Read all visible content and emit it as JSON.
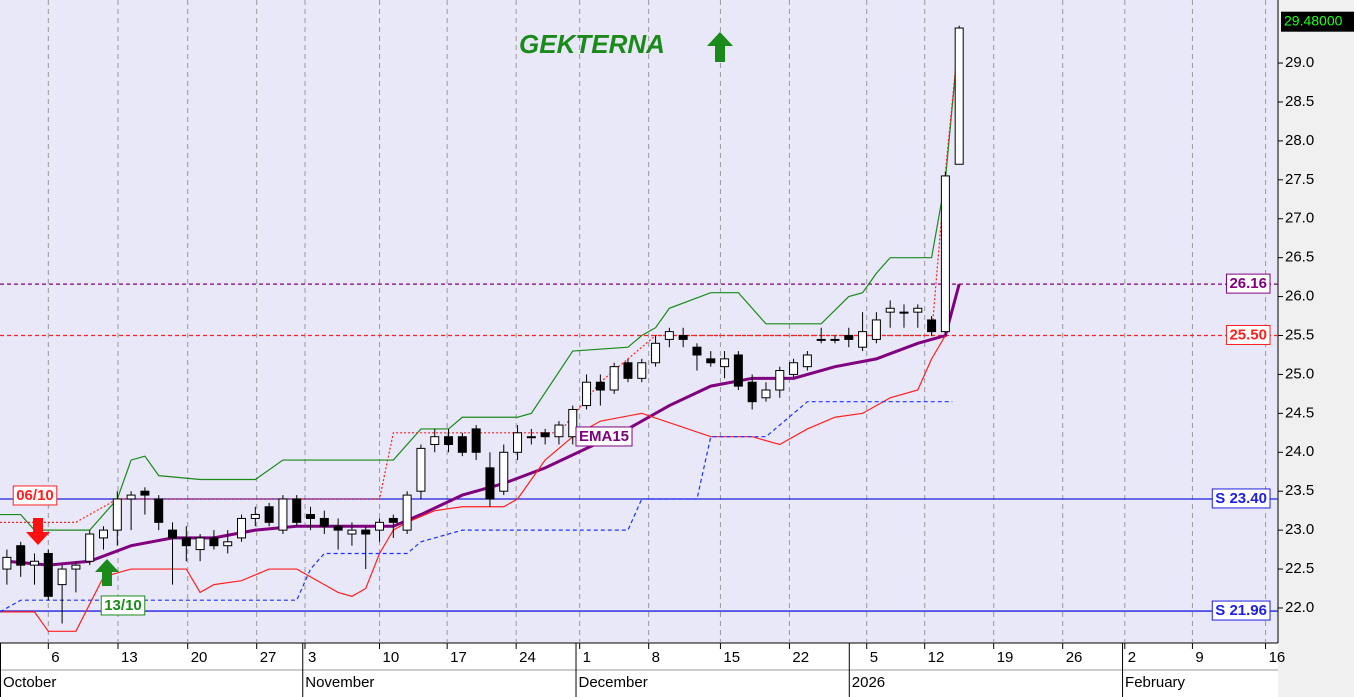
{
  "chart_data": {
    "type": "candlestick",
    "title": "GEKTERNA",
    "title_color": "#1a8a1a",
    "ylim": [
      21.55,
      29.81
    ],
    "xlim": [
      -0.5,
      92.1
    ],
    "yticks": [
      {
        "value": 22,
        "label": "22.0"
      },
      22.5,
      {
        "value": 23,
        "label": "23.0"
      },
      23.5,
      {
        "value": 24,
        "label": "24.0"
      },
      24.5,
      {
        "value": 25,
        "label": "25.0"
      },
      25.5,
      {
        "value": 26,
        "label": "26.0"
      },
      26.5,
      {
        "value": 27,
        "label": "27.0"
      },
      27.5,
      {
        "value": 28,
        "label": "28.0"
      },
      28.5,
      {
        "value": 29,
        "label": "29.0"
      }
    ],
    "xticks": [
      {
        "value": 3,
        "label": "6"
      },
      {
        "value": 8.05,
        "label": "13"
      },
      {
        "value": 13.1,
        "label": "20"
      },
      {
        "value": 18.1,
        "label": "27"
      },
      {
        "value": 21.6,
        "label": "3"
      },
      {
        "value": 27,
        "label": "10"
      },
      {
        "value": 31.9,
        "label": "17"
      },
      {
        "value": 36.9,
        "label": "24"
      },
      {
        "value": 41.5,
        "label": "1"
      },
      {
        "value": 46.5,
        "label": "8"
      },
      {
        "value": 51.7,
        "label": "15"
      },
      {
        "value": 56.7,
        "label": "22"
      },
      {
        "value": 62.3,
        "label": "5"
      },
      {
        "value": 66.5,
        "label": "12"
      },
      {
        "value": 71.5,
        "label": "19"
      },
      {
        "value": 76.5,
        "label": "26"
      },
      {
        "value": 81,
        "label": "2"
      },
      {
        "value": 85.9,
        "label": "9"
      },
      {
        "value": 91.2,
        "label": "16"
      }
    ],
    "months": [
      {
        "value": -0.5,
        "label": "October"
      },
      {
        "value": 21.4,
        "label": "November"
      },
      {
        "value": 61,
        "label": "2026"
      },
      {
        "value": 41.2,
        "label": "December"
      },
      {
        "value": 80.8,
        "label": "February"
      }
    ],
    "grid": true,
    "candles": {
      "open": [
        22.5,
        22.8,
        22.55,
        22.7,
        22.3,
        22.5,
        22.6,
        22.9,
        23.0,
        23.4,
        23.5,
        23.4,
        23.0,
        22.9,
        22.75,
        22.9,
        22.8,
        22.9,
        23.15,
        23.3,
        23.0,
        23.4,
        23.2,
        23.15,
        23.05,
        22.95,
        23.0,
        23.0,
        23.15,
        23.0,
        23.5,
        24.1,
        24.2,
        24.2,
        24.3,
        23.8,
        23.5,
        24.0,
        24.2,
        24.25,
        24.2,
        24.2,
        24.6,
        24.9,
        24.8,
        25.15,
        24.95,
        25.15,
        25.45,
        25.5,
        25.35,
        25.2,
        25.1,
        25.25,
        24.9,
        24.7,
        24.8,
        25.0,
        25.1,
        25.45,
        25.45,
        25.5,
        25.35,
        25.45,
        25.8,
        25.8,
        25.8,
        25.7,
        25.55,
        27.7
      ],
      "high": [
        22.75,
        22.85,
        22.7,
        22.75,
        22.55,
        22.6,
        23.0,
        23.05,
        23.5,
        23.5,
        23.55,
        23.45,
        23.1,
        23.05,
        22.95,
        23.0,
        23.0,
        23.2,
        23.3,
        23.35,
        23.45,
        23.45,
        23.3,
        23.25,
        23.15,
        23.1,
        23.05,
        23.15,
        23.2,
        23.5,
        24.1,
        24.3,
        24.3,
        24.25,
        24.35,
        24.0,
        24.1,
        24.35,
        24.3,
        24.3,
        24.4,
        24.6,
        25.0,
        25.0,
        25.15,
        25.2,
        25.2,
        25.5,
        25.6,
        25.6,
        25.4,
        25.3,
        25.3,
        25.3,
        25.0,
        24.9,
        25.1,
        25.2,
        25.3,
        25.6,
        25.5,
        25.6,
        25.8,
        25.8,
        25.95,
        25.9,
        25.9,
        25.75,
        27.6,
        29.48
      ],
      "low": [
        22.3,
        22.4,
        22.3,
        22.1,
        21.8,
        22.2,
        22.55,
        22.75,
        22.8,
        23.0,
        23.2,
        23.0,
        22.3,
        22.6,
        22.6,
        22.75,
        22.7,
        22.85,
        23.05,
        23.05,
        22.95,
        23.05,
        23.0,
        22.95,
        22.75,
        22.8,
        22.5,
        22.85,
        22.9,
        22.95,
        23.4,
        24.0,
        24.0,
        23.95,
        23.9,
        23.3,
        23.45,
        23.9,
        24.1,
        24.1,
        24.1,
        24.1,
        24.55,
        24.6,
        24.75,
        24.9,
        24.9,
        25.1,
        25.35,
        25.35,
        25.05,
        25.1,
        24.95,
        24.8,
        24.55,
        24.65,
        24.7,
        24.95,
        25.05,
        25.4,
        25.4,
        25.35,
        25.3,
        25.4,
        25.6,
        25.6,
        25.6,
        25.5,
        25.5,
        27.7
      ],
      "close": [
        22.65,
        22.55,
        22.6,
        22.15,
        22.5,
        22.55,
        22.95,
        23.0,
        23.4,
        23.45,
        23.45,
        23.1,
        22.9,
        22.8,
        22.9,
        22.8,
        22.85,
        23.15,
        23.2,
        23.1,
        23.4,
        23.1,
        23.15,
        23.05,
        23.0,
        23.0,
        22.95,
        23.1,
        23.1,
        23.45,
        24.05,
        24.2,
        24.1,
        24.0,
        24.0,
        23.4,
        24.0,
        24.25,
        24.2,
        24.2,
        24.35,
        24.55,
        24.9,
        24.8,
        25.1,
        24.95,
        25.15,
        25.4,
        25.55,
        25.45,
        25.25,
        25.15,
        25.2,
        24.85,
        24.65,
        24.8,
        25.05,
        25.15,
        25.25,
        25.45,
        25.45,
        25.45,
        25.55,
        25.7,
        25.85,
        25.8,
        25.85,
        25.55,
        27.55,
        29.45
      ]
    },
    "lines": [
      {
        "name": "EMA15",
        "color": "#800080",
        "style": "solid",
        "width": 3,
        "x": [
          0,
          3,
          6,
          9,
          12,
          15,
          18,
          21,
          25,
          28,
          30,
          33,
          36,
          39,
          42,
          45,
          48,
          51,
          54,
          57,
          60,
          63,
          66,
          68,
          69
        ],
        "values": [
          22.6,
          22.55,
          22.6,
          22.8,
          22.9,
          22.9,
          23.0,
          23.05,
          23.05,
          23.05,
          23.2,
          23.45,
          23.6,
          23.8,
          24.05,
          24.3,
          24.6,
          24.85,
          24.95,
          24.95,
          25.1,
          25.2,
          25.4,
          25.5,
          26.16
        ]
      },
      {
        "color": "#1a8a1a",
        "style": "solid",
        "width": 1.2,
        "x": [
          -0.5,
          1,
          2,
          6,
          8,
          9,
          10,
          11,
          14,
          18,
          20,
          28,
          30,
          32,
          33,
          37,
          38,
          41,
          45,
          46,
          47,
          48,
          51,
          53,
          55,
          59,
          61,
          62,
          63,
          64,
          67,
          68,
          69
        ],
        "values": [
          23.2,
          23.2,
          23.0,
          23.0,
          23.4,
          23.9,
          23.95,
          23.7,
          23.65,
          23.65,
          23.9,
          23.9,
          24.3,
          24.3,
          24.45,
          24.45,
          24.5,
          25.3,
          25.35,
          25.5,
          25.6,
          25.85,
          26.05,
          26.05,
          25.65,
          25.65,
          26.0,
          26.05,
          26.3,
          26.5,
          26.5,
          27.5,
          29.4
        ]
      },
      {
        "color": "#ff2020",
        "style": "solid",
        "width": 1.2,
        "x": [
          -0.5,
          2,
          3,
          5,
          6,
          7,
          9,
          13,
          14,
          15,
          17,
          19,
          21,
          23,
          24,
          25,
          26,
          27,
          28,
          29,
          31,
          33,
          36,
          37,
          39,
          41,
          43,
          46,
          51,
          54,
          56,
          58,
          60,
          62,
          64,
          66,
          67,
          68
        ],
        "values": [
          21.95,
          21.95,
          21.7,
          21.7,
          22.05,
          22.4,
          22.5,
          22.5,
          22.2,
          22.3,
          22.35,
          22.5,
          22.5,
          22.3,
          22.2,
          22.15,
          22.25,
          22.7,
          23.0,
          23.1,
          23.25,
          23.3,
          23.3,
          23.4,
          23.9,
          24.2,
          24.4,
          24.5,
          24.2,
          24.2,
          24.1,
          24.3,
          24.45,
          24.5,
          24.7,
          24.8,
          25.2,
          25.5
        ]
      },
      {
        "color": "#2030ff",
        "style": "dashed",
        "width": 1.2,
        "x": [
          -0.5,
          1,
          21,
          22,
          23,
          29,
          30,
          33,
          45,
          46,
          50,
          51,
          55,
          57,
          58,
          68.5
        ],
        "values": [
          21.95,
          22.1,
          22.1,
          22.5,
          22.7,
          22.7,
          22.85,
          23.0,
          23.0,
          23.4,
          23.4,
          24.2,
          24.2,
          24.5,
          24.65,
          24.65
        ]
      },
      {
        "color": "#ff2020",
        "style": "dotted",
        "width": 1.2,
        "x": [
          -0.5,
          5,
          8,
          27,
          28,
          40,
          43,
          47,
          67,
          68,
          69
        ],
        "values": [
          23.1,
          23.1,
          23.4,
          23.4,
          24.25,
          24.25,
          24.9,
          25.5,
          25.5,
          27.6,
          29.4
        ]
      }
    ],
    "levels": [
      {
        "value": 26.16,
        "label": "26.16",
        "color": "#800080",
        "style": "dashed"
      },
      {
        "value": 25.5,
        "label": "25.50",
        "color": "#ff2020",
        "style": "dashed"
      },
      {
        "value": 23.4,
        "label": "S 23.40",
        "color": "#2020e0",
        "style": "solid"
      },
      {
        "value": 21.96,
        "label": "S 21.96",
        "color": "#2020e0",
        "style": "solid"
      }
    ],
    "annotations": [
      {
        "text": "06/10",
        "color": "#ff2020"
      },
      {
        "text": "13/10",
        "color": "#1a8a1a"
      }
    ],
    "last_price": {
      "value": 29.48,
      "label": "29.48000"
    }
  }
}
